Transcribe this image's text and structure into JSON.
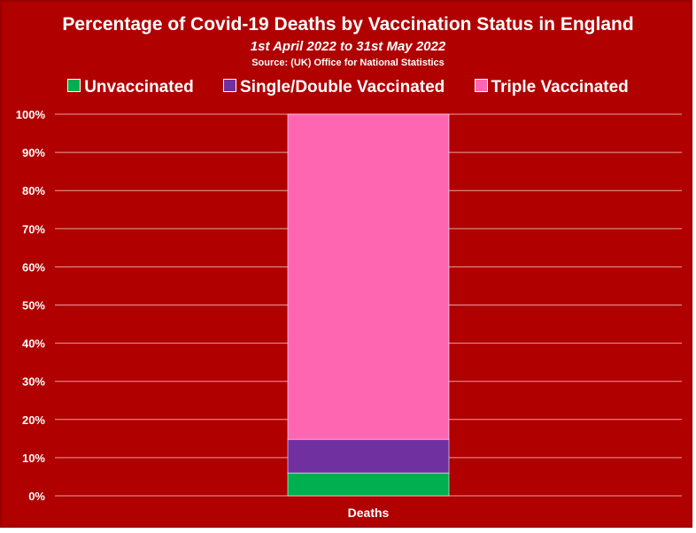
{
  "chart_data": {
    "type": "bar",
    "stacked": true,
    "percent": true,
    "title": "Percentage of Covid-19 Deaths by Vaccination Status in England",
    "subtitle": "1st April 2022 to 31st May 2022",
    "source": "Source: (UK) Office for National Statistics",
    "categories": [
      "Deaths"
    ],
    "xlabel": "",
    "ylabel": "",
    "ylim": [
      0,
      100
    ],
    "yticks": [
      "0%",
      "10%",
      "20%",
      "30%",
      "40%",
      "50%",
      "60%",
      "70%",
      "80%",
      "90%",
      "100%"
    ],
    "grid": true,
    "legend_position": "top",
    "series": [
      {
        "name": "Unvaccinated",
        "values": [
          6
        ],
        "color": "#00b050"
      },
      {
        "name": "Single/Double Vaccinated",
        "values": [
          8.8
        ],
        "color": "#7030a0"
      },
      {
        "name": "Triple Vaccinated",
        "values": [
          85.2
        ],
        "color": "#ff66b2"
      }
    ],
    "background_color": "#b00000"
  }
}
